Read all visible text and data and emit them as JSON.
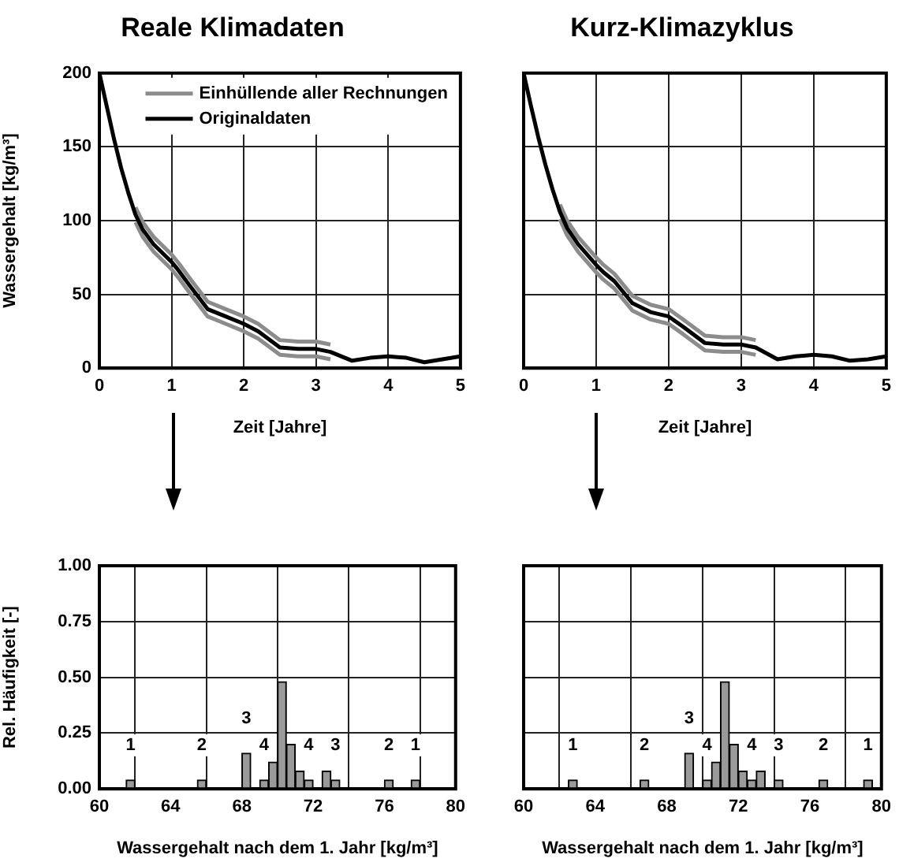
{
  "chart_data": [
    {
      "type": "line",
      "title": "Reale Klimadaten",
      "xlabel": "Zeit [Jahre]",
      "ylabel": "Wassergehalt [kg/m³]",
      "x": [
        0,
        0.1,
        0.2,
        0.3,
        0.4,
        0.5,
        0.6,
        0.75,
        1,
        1.1,
        1.25,
        1.5,
        1.75,
        2,
        2.2,
        2.5,
        2.75,
        3,
        3.2,
        3.5,
        3.75,
        4,
        4.25,
        4.5,
        4.75,
        5
      ],
      "series": [
        {
          "name": "Einhüllende aller Rechnungen",
          "color": "#8c8c8c",
          "values": [
            null,
            null,
            null,
            null,
            null,
            109,
            99,
            89,
            77,
            71,
            61,
            45,
            40,
            35,
            30,
            19,
            18,
            18,
            16,
            null,
            null,
            null,
            null,
            null,
            null,
            null
          ]
        },
        {
          "color": "#8c8c8c",
          "values": [
            null,
            null,
            null,
            null,
            null,
            99,
            89,
            79,
            67,
            61,
            51,
            35,
            30,
            25,
            20,
            9,
            8,
            8,
            6,
            null,
            null,
            null,
            null,
            null,
            null,
            null
          ]
        },
        {
          "name": "Originaldaten",
          "color": "#000000",
          "values": [
            200,
            178,
            156,
            136,
            119,
            104,
            94,
            84,
            72,
            66,
            56,
            40,
            35,
            30,
            25,
            14,
            13,
            13,
            11,
            5,
            7,
            8,
            7,
            4,
            6,
            8
          ]
        }
      ],
      "xlim": [
        0,
        5
      ],
      "xticks": [
        0,
        1,
        2,
        3,
        4,
        5
      ],
      "ylim": [
        0,
        200
      ],
      "yticks": [
        0,
        50,
        100,
        150,
        200
      ],
      "grid": true,
      "legend": "top right"
    },
    {
      "type": "line",
      "title": "Kurz-Klimazyklus",
      "xlabel": "Zeit [Jahre]",
      "x": [
        0,
        0.1,
        0.2,
        0.3,
        0.4,
        0.5,
        0.6,
        0.75,
        1,
        1.1,
        1.25,
        1.5,
        1.75,
        2,
        2.2,
        2.5,
        2.75,
        3,
        3.2,
        3.5,
        3.75,
        4,
        4.25,
        4.5,
        4.75,
        5
      ],
      "series": [
        {
          "color": "#8c8c8c",
          "values": [
            null,
            null,
            null,
            null,
            null,
            111,
            100,
            89,
            75,
            70,
            64,
            49,
            43,
            40,
            33,
            22,
            21,
            21,
            19,
            null,
            null,
            null,
            null,
            null,
            null,
            null
          ]
        },
        {
          "color": "#8c8c8c",
          "values": [
            null,
            null,
            null,
            null,
            null,
            101,
            90,
            79,
            65,
            60,
            54,
            39,
            33,
            30,
            23,
            12,
            11,
            11,
            9,
            null,
            null,
            null,
            null,
            null,
            null,
            null
          ]
        },
        {
          "color": "#000000",
          "values": [
            200,
            178,
            157,
            138,
            121,
            106,
            95,
            84,
            70,
            65,
            59,
            44,
            38,
            35,
            28,
            17,
            16,
            16,
            14,
            6,
            8,
            9,
            8,
            5,
            6,
            8
          ]
        }
      ],
      "xlim": [
        0,
        5
      ],
      "xticks": [
        0,
        1,
        2,
        3,
        4,
        5
      ],
      "ylim": [
        0,
        200
      ],
      "yticks": [
        0,
        50,
        100,
        150,
        200
      ],
      "grid": true,
      "tick_labels": "x"
    },
    {
      "type": "histogram",
      "xlabel": "Wassergehalt nach dem 1. Jahr [kg/m³]",
      "ylabel": "Rel. Häufigkeit [-]",
      "color": "#9a9a9a",
      "bins": [
        61.5,
        62,
        62.5,
        63,
        63.5,
        64,
        64.5,
        65,
        65.5,
        66,
        66.5,
        67,
        67.5,
        68,
        68.5,
        69,
        69.5,
        70,
        70.5,
        71,
        71.5,
        72,
        72.5,
        73,
        73.5,
        74,
        74.5,
        75,
        75.5,
        76,
        76.5,
        77,
        77.5,
        78
      ],
      "values": [
        0.04,
        0,
        0,
        0,
        0,
        0,
        0,
        0,
        0.04,
        0,
        0,
        0,
        0,
        0.16,
        0,
        0.04,
        0.12,
        0.48,
        0.2,
        0.08,
        0.04,
        0,
        0.08,
        0.04,
        0,
        0,
        0,
        0,
        0,
        0.04,
        0,
        0,
        0.04
      ],
      "xlim": [
        60,
        80
      ],
      "xticks": [
        60,
        64,
        68,
        72,
        76,
        80
      ],
      "ylim": [
        0,
        1
      ],
      "yticks": [
        {
          "value": 0,
          "label": "0.00"
        },
        {
          "value": 0.25,
          "label": "0.25"
        },
        {
          "value": 0.5,
          "label": "0.50"
        },
        {
          "value": 0.75,
          "label": "0.75"
        },
        {
          "value": 1,
          "label": "1.00"
        }
      ],
      "grid": true,
      "annotations": [
        {
          "text": "1",
          "x": 61.75,
          "y": 0.04
        },
        {
          "text": "2",
          "x": 65.75,
          "y": 0.04
        },
        {
          "text": "3",
          "x": 68.25,
          "y": 0.16
        },
        {
          "text": "4",
          "x": 69.25,
          "y": 0.04
        },
        {
          "text": "4",
          "x": 71.75,
          "y": 0.04
        },
        {
          "text": "3",
          "x": 73.25,
          "y": 0.04
        },
        {
          "text": "2",
          "x": 76.25,
          "y": 0.04
        },
        {
          "text": "1",
          "x": 77.75,
          "y": 0.04
        }
      ]
    },
    {
      "type": "histogram",
      "xlabel": "Wassergehalt nach dem 1. Jahr [kg/m³]",
      "color": "#9a9a9a",
      "bins": [
        62.5,
        63,
        63.5,
        64,
        64.5,
        65,
        65.5,
        66,
        66.5,
        67,
        67.5,
        68,
        68.5,
        69,
        69.5,
        70,
        70.5,
        71,
        71.5,
        72,
        72.5,
        73,
        73.5,
        74,
        74.5,
        75,
        75.5,
        76,
        76.5,
        77,
        77.5,
        78,
        78.5,
        79,
        79.5
      ],
      "values": [
        0.04,
        0,
        0,
        0,
        0,
        0,
        0,
        0,
        0.04,
        0,
        0,
        0,
        0,
        0.16,
        0,
        0.04,
        0.12,
        0.48,
        0.2,
        0.08,
        0.04,
        0.08,
        0,
        0.04,
        0,
        0,
        0,
        0,
        0.04,
        0,
        0,
        0,
        0,
        0.04
      ],
      "xlim": [
        60,
        80
      ],
      "xticks": [
        60,
        64,
        68,
        72,
        76,
        80
      ],
      "ylim": [
        0,
        1
      ],
      "yticks": [
        0,
        0.25,
        0.5,
        0.75,
        1
      ],
      "grid": true,
      "tick_labels": "x",
      "annotations": [
        {
          "text": "1",
          "x": 62.75,
          "y": 0.04
        },
        {
          "text": "2",
          "x": 66.75,
          "y": 0.04
        },
        {
          "text": "3",
          "x": 69.25,
          "y": 0.16
        },
        {
          "text": "4",
          "x": 70.25,
          "y": 0.04
        },
        {
          "text": "4",
          "x": 72.75,
          "y": 0.04
        },
        {
          "text": "3",
          "x": 74.25,
          "y": 0.04
        },
        {
          "text": "2",
          "x": 76.75,
          "y": 0.04
        },
        {
          "text": "1",
          "x": 79.25,
          "y": 0.04
        }
      ]
    }
  ]
}
